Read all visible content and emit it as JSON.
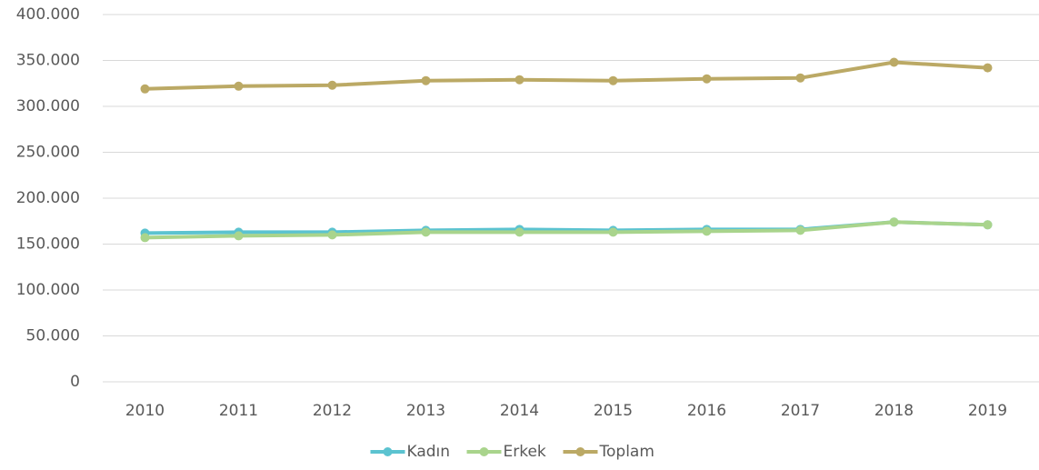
{
  "chart_data": {
    "type": "line",
    "categories": [
      "2010",
      "2011",
      "2012",
      "2013",
      "2014",
      "2015",
      "2016",
      "2017",
      "2018",
      "2019"
    ],
    "series": [
      {
        "name": "Kadın",
        "color": "#5bc3d0",
        "values": [
          162000,
          163000,
          163000,
          165000,
          166000,
          165000,
          166000,
          166000,
          174000,
          171000
        ]
      },
      {
        "name": "Erkek",
        "color": "#a9d48c",
        "values": [
          157000,
          159000,
          160000,
          163000,
          163000,
          163000,
          164000,
          165000,
          174000,
          171000
        ]
      },
      {
        "name": "Toplam",
        "color": "#bba965",
        "values": [
          319000,
          322000,
          323000,
          328000,
          329000,
          328000,
          330000,
          331000,
          348000,
          342000
        ]
      }
    ],
    "ylim": [
      0,
      400000
    ],
    "yticks": [
      0,
      {
        "value": 50000,
        "label": "50.000"
      },
      {
        "value": 100000,
        "label": "100.000"
      },
      {
        "value": 150000,
        "label": "150.000"
      },
      {
        "value": 200000,
        "label": "200.000"
      },
      {
        "value": 250000,
        "label": "250.000"
      },
      {
        "value": 300000,
        "label": "300.000"
      },
      {
        "value": 350000,
        "label": "350.000"
      },
      {
        "value": 400000,
        "label": "400.000"
      }
    ],
    "grid": true,
    "legend": "bottom"
  }
}
